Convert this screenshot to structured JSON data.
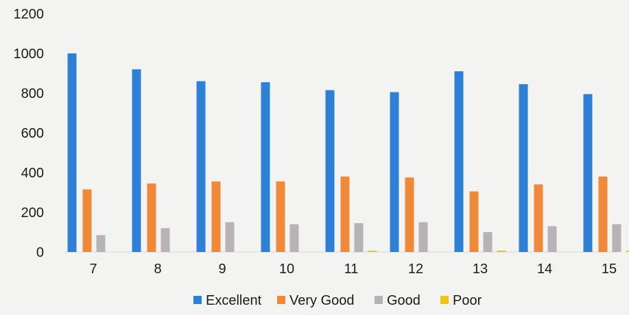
{
  "chart_data": {
    "type": "bar",
    "categories": [
      "7",
      "8",
      "9",
      "10",
      "11",
      "12",
      "13",
      "14",
      "15"
    ],
    "series": [
      {
        "name": "Excellent",
        "color": "#2e7fd6",
        "values": [
          1000,
          920,
          860,
          855,
          815,
          805,
          910,
          845,
          795
        ]
      },
      {
        "name": "Very Good",
        "color": "#f0883a",
        "values": [
          315,
          345,
          355,
          355,
          380,
          375,
          305,
          340,
          380
        ]
      },
      {
        "name": "Good",
        "color": "#b7b2b6",
        "values": [
          85,
          120,
          150,
          140,
          145,
          150,
          100,
          130,
          140
        ]
      },
      {
        "name": "Poor",
        "color": "#f0c419",
        "values": [
          0,
          0,
          0,
          0,
          5,
          0,
          5,
          0,
          5
        ]
      }
    ],
    "yticks": [
      "0",
      "200",
      "400",
      "600",
      "800",
      "1000",
      "1200"
    ],
    "ylim": [
      0,
      1200
    ],
    "grid": false,
    "legend": "bottom"
  }
}
